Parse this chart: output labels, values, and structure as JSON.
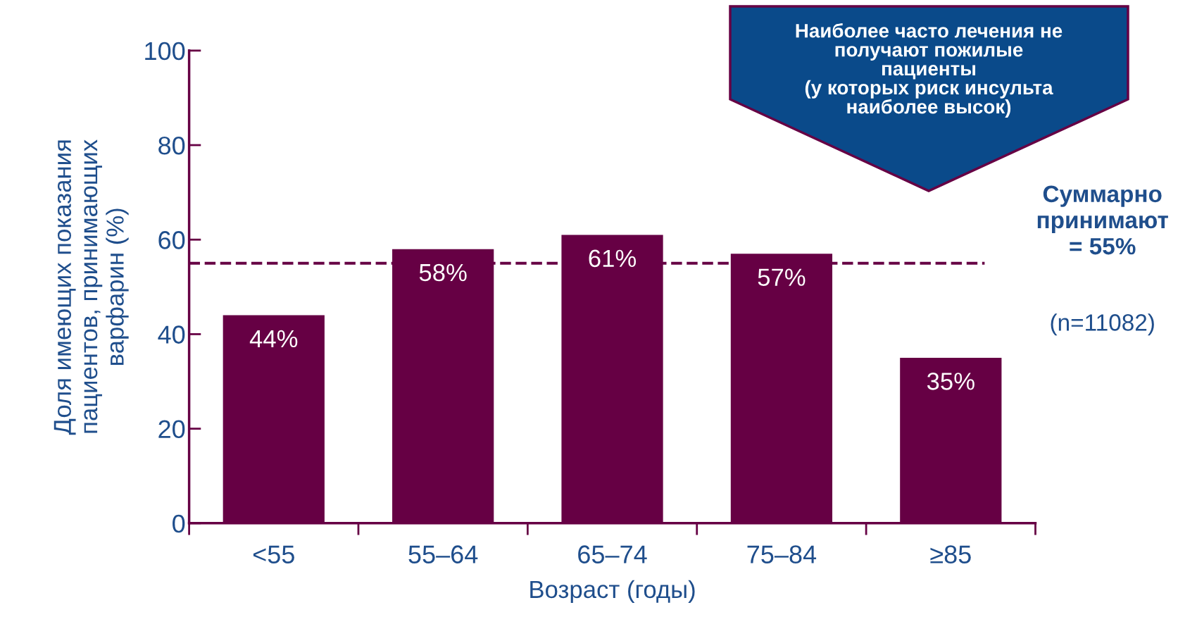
{
  "chart_data": {
    "type": "bar",
    "ylabel": "Доля имеющих показания пациентов, принимающих варфарин (%)",
    "xlabel": "Возраст (годы)",
    "categories": [
      "<55",
      "55–64",
      "65–74",
      "75–84",
      "≥85"
    ],
    "values": [
      44,
      58,
      61,
      57,
      35
    ],
    "color": "#660044",
    "value_labels": [
      "44%",
      "58%",
      "61%",
      "57%",
      "35%"
    ],
    "ylim": [
      0,
      100
    ],
    "yticks": [
      0,
      20,
      40,
      60,
      80,
      100
    ],
    "grid": false,
    "ref_lines": [
      {
        "axis": "y",
        "value": 55,
        "label": "Суммарно принимают = 55%",
        "color": "#660044",
        "line_style": "dashed"
      }
    ],
    "annotations": [
      "(n=11082)",
      "Наиболее часто лечения не\nполучают пожилые\nпациенты\n(у которых риск инсульта\nнаиболее высок)"
    ]
  }
}
